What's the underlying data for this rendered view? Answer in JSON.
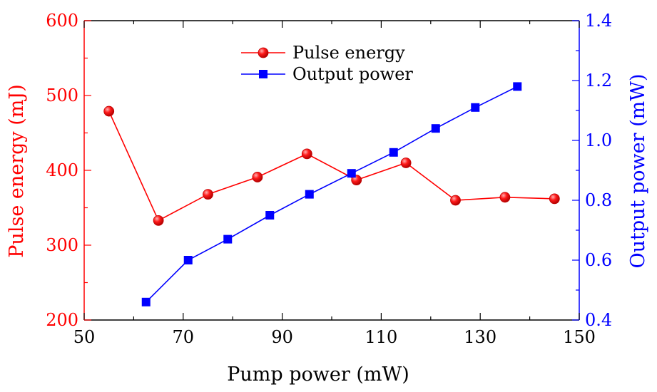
{
  "chart_data": {
    "type": "line",
    "title": "",
    "xlabel": "Pump power (mW)",
    "ylabel_left": "Pulse energy (mJ)",
    "ylabel_right": "Output power (mW)",
    "xlim": [
      50,
      150
    ],
    "ylim_left": [
      200,
      600
    ],
    "ylim_right": [
      0.4,
      1.4
    ],
    "x_ticks": [
      50,
      70,
      90,
      110,
      130,
      150
    ],
    "y_left_ticks": [
      200,
      300,
      400,
      500,
      600
    ],
    "y_right_ticks": [
      "0.4",
      "0.6",
      "0.8",
      "1.0",
      "1.2",
      "1.4"
    ],
    "legend_position": "top-center",
    "series": [
      {
        "name": "Pulse energy",
        "axis": "left",
        "color": "#ff0000",
        "marker": "circle",
        "x": [
          55,
          65,
          75,
          85,
          95,
          105,
          115,
          125,
          135,
          145
        ],
        "values": [
          479,
          333,
          368,
          391,
          422,
          387,
          410,
          360,
          364,
          362
        ]
      },
      {
        "name": "Output power",
        "axis": "right",
        "color": "#0000ff",
        "marker": "square",
        "x": [
          62.5,
          71,
          79,
          87.5,
          95.5,
          104,
          112.5,
          121,
          129,
          137.5
        ],
        "values": [
          0.46,
          0.6,
          0.67,
          0.75,
          0.82,
          0.89,
          0.96,
          1.04,
          1.11,
          1.18
        ]
      }
    ]
  }
}
